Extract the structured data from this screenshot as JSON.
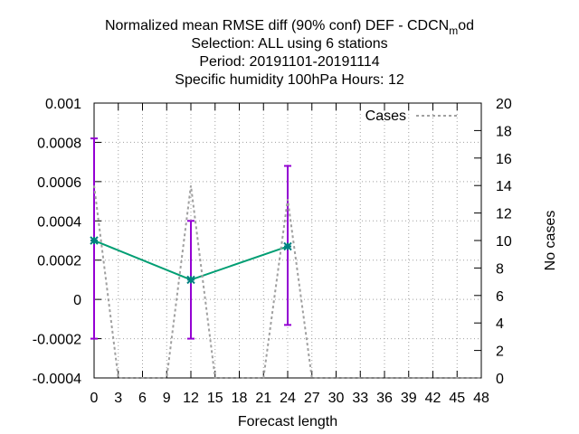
{
  "chart_data": {
    "type": "line",
    "title_lines": [
      {
        "text": "Normalized mean RMSE diff (90% conf) DEF - CDCN",
        "subscript": "m",
        "suffix": "od"
      },
      {
        "text": "Selection: ALL using     6 stations"
      },
      {
        "text": "Period: 20191101-20191114"
      },
      {
        "text": "Specific humidity 100hPa   Hours:  12"
      }
    ],
    "xlabel": "Forecast length",
    "ylabel": "",
    "y2label": "No cases",
    "xlim": [
      0,
      48
    ],
    "ylim": [
      -0.0004,
      0.001
    ],
    "y2lim": [
      0,
      20
    ],
    "x_ticks": [
      0,
      3,
      6,
      9,
      12,
      15,
      18,
      21,
      24,
      27,
      30,
      33,
      36,
      39,
      42,
      45,
      48
    ],
    "y_ticks": [
      "0.001",
      "0.0008",
      "0.0006",
      "0.0004",
      "0.0002",
      "0",
      "-0.0002",
      "-0.0004"
    ],
    "y_tick_values": [
      0.001,
      0.0008,
      0.0006,
      0.0004,
      0.0002,
      0,
      -0.0002,
      -0.0004
    ],
    "y2_ticks": [
      0,
      2,
      4,
      6,
      8,
      10,
      12,
      14,
      16,
      18,
      20
    ],
    "grid": true,
    "legend_position": "top-right",
    "series": [
      {
        "name": "",
        "color": "#009e73",
        "marker_color": "#008080",
        "x": [
          0,
          12,
          24
        ],
        "y": [
          0.0003,
          0.0001,
          0.00027
        ],
        "err_low": [
          -0.0002,
          -0.0002,
          -0.00013
        ],
        "err_high": [
          0.00082,
          0.0004,
          0.00068
        ],
        "err_color": "#9400d3"
      },
      {
        "name": "Cases",
        "axis": "y2",
        "color": "#a0a0a0",
        "dashed": true,
        "x": [
          0,
          3,
          9,
          12,
          15,
          21,
          24,
          27,
          48
        ],
        "y": [
          14,
          0,
          0,
          14,
          0,
          0,
          13,
          0,
          0
        ]
      }
    ]
  }
}
